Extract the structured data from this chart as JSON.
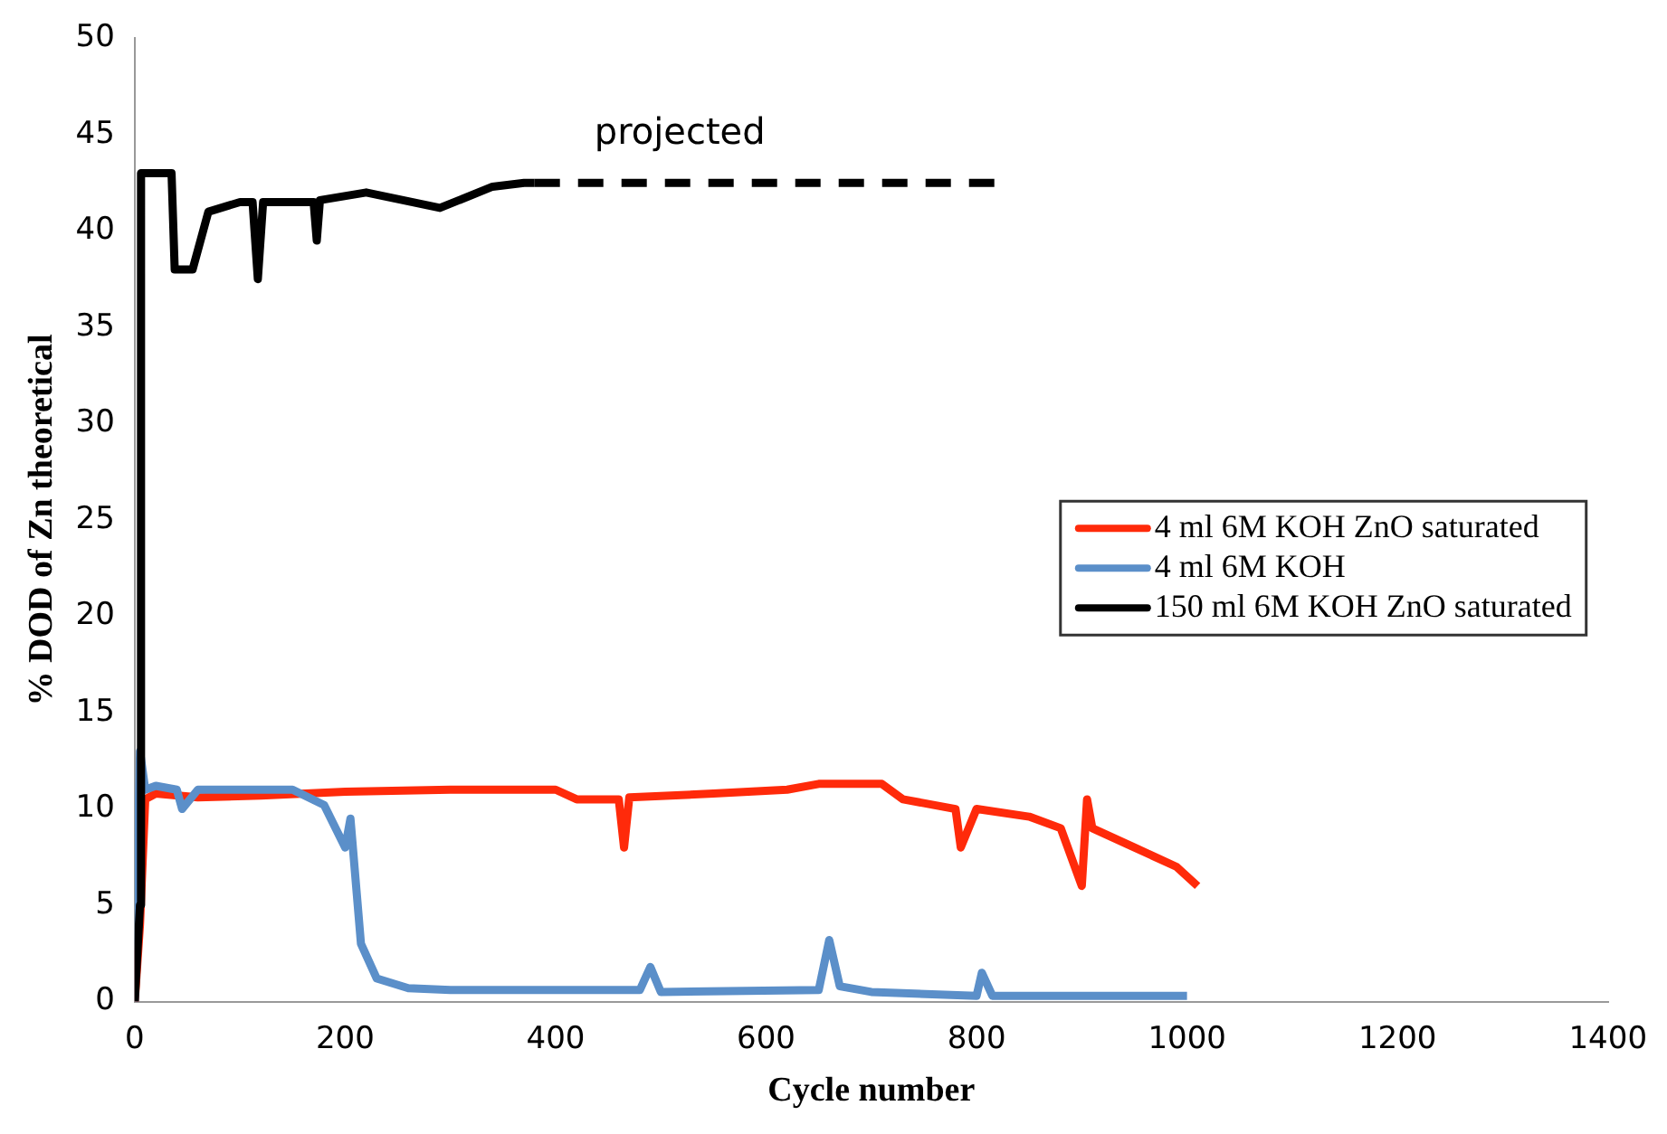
{
  "chart_data": {
    "type": "line",
    "xlabel": "Cycle number",
    "ylabel": "% DOD of Zn theoretical",
    "xlim": [
      0,
      1400
    ],
    "xticks": [
      0,
      200,
      400,
      600,
      800,
      1000,
      1200,
      1400
    ],
    "ylim": [
      0,
      50
    ],
    "yticks": [
      0,
      5,
      10,
      15,
      20,
      25,
      30,
      35,
      40,
      45,
      50
    ],
    "grid": false,
    "legend": "right",
    "marker": "none",
    "annotations": [
      "projected"
    ],
    "series": [
      {
        "name": "4 ml 6M KOH ZnO saturated",
        "color": "#ff2a0a",
        "x": [
          0,
          5,
          10,
          20,
          60,
          120,
          200,
          300,
          400,
          420,
          460,
          465,
          470,
          550,
          620,
          650,
          710,
          730,
          780,
          785,
          800,
          850,
          880,
          900,
          905,
          910,
          950,
          990,
          1010
        ],
        "values": [
          0,
          4,
          10.5,
          10.8,
          10.6,
          10.7,
          10.9,
          11,
          11,
          10.5,
          10.5,
          8,
          10.6,
          10.8,
          11,
          11.3,
          11.3,
          10.5,
          10,
          8,
          10,
          9.6,
          9,
          6,
          10.5,
          9,
          8,
          7,
          6
        ]
      },
      {
        "name": "4 ml 6M KOH",
        "color": "#5b8fc9",
        "x": [
          0,
          5,
          10,
          20,
          40,
          45,
          60,
          150,
          180,
          200,
          205,
          215,
          230,
          260,
          300,
          480,
          490,
          500,
          650,
          660,
          670,
          700,
          800,
          805,
          815,
          1000
        ],
        "values": [
          0,
          13,
          11,
          11.2,
          11,
          10,
          11,
          11,
          10.2,
          8,
          9.5,
          3,
          1.2,
          0.7,
          0.6,
          0.6,
          1.8,
          0.5,
          0.6,
          3.2,
          0.8,
          0.5,
          0.3,
          1.5,
          0.3,
          0.3
        ]
      },
      {
        "name": "150 ml 6M KOH ZnO saturated",
        "color": "#000000",
        "x": [
          0,
          5,
          6,
          35,
          38,
          55,
          70,
          100,
          112,
          117,
          122,
          170,
          173,
          176,
          220,
          290,
          340,
          370,
          380
        ],
        "values": [
          0,
          5,
          43,
          43,
          38,
          38,
          41,
          41.5,
          41.5,
          37.5,
          41.5,
          41.5,
          39.5,
          41.6,
          42,
          41.2,
          42.3,
          42.5,
          42.5
        ]
      },
      {
        "color": "#000000",
        "line_style": "dashed",
        "x": [
          380,
          820
        ],
        "values": [
          42.5,
          42.5
        ]
      }
    ]
  }
}
